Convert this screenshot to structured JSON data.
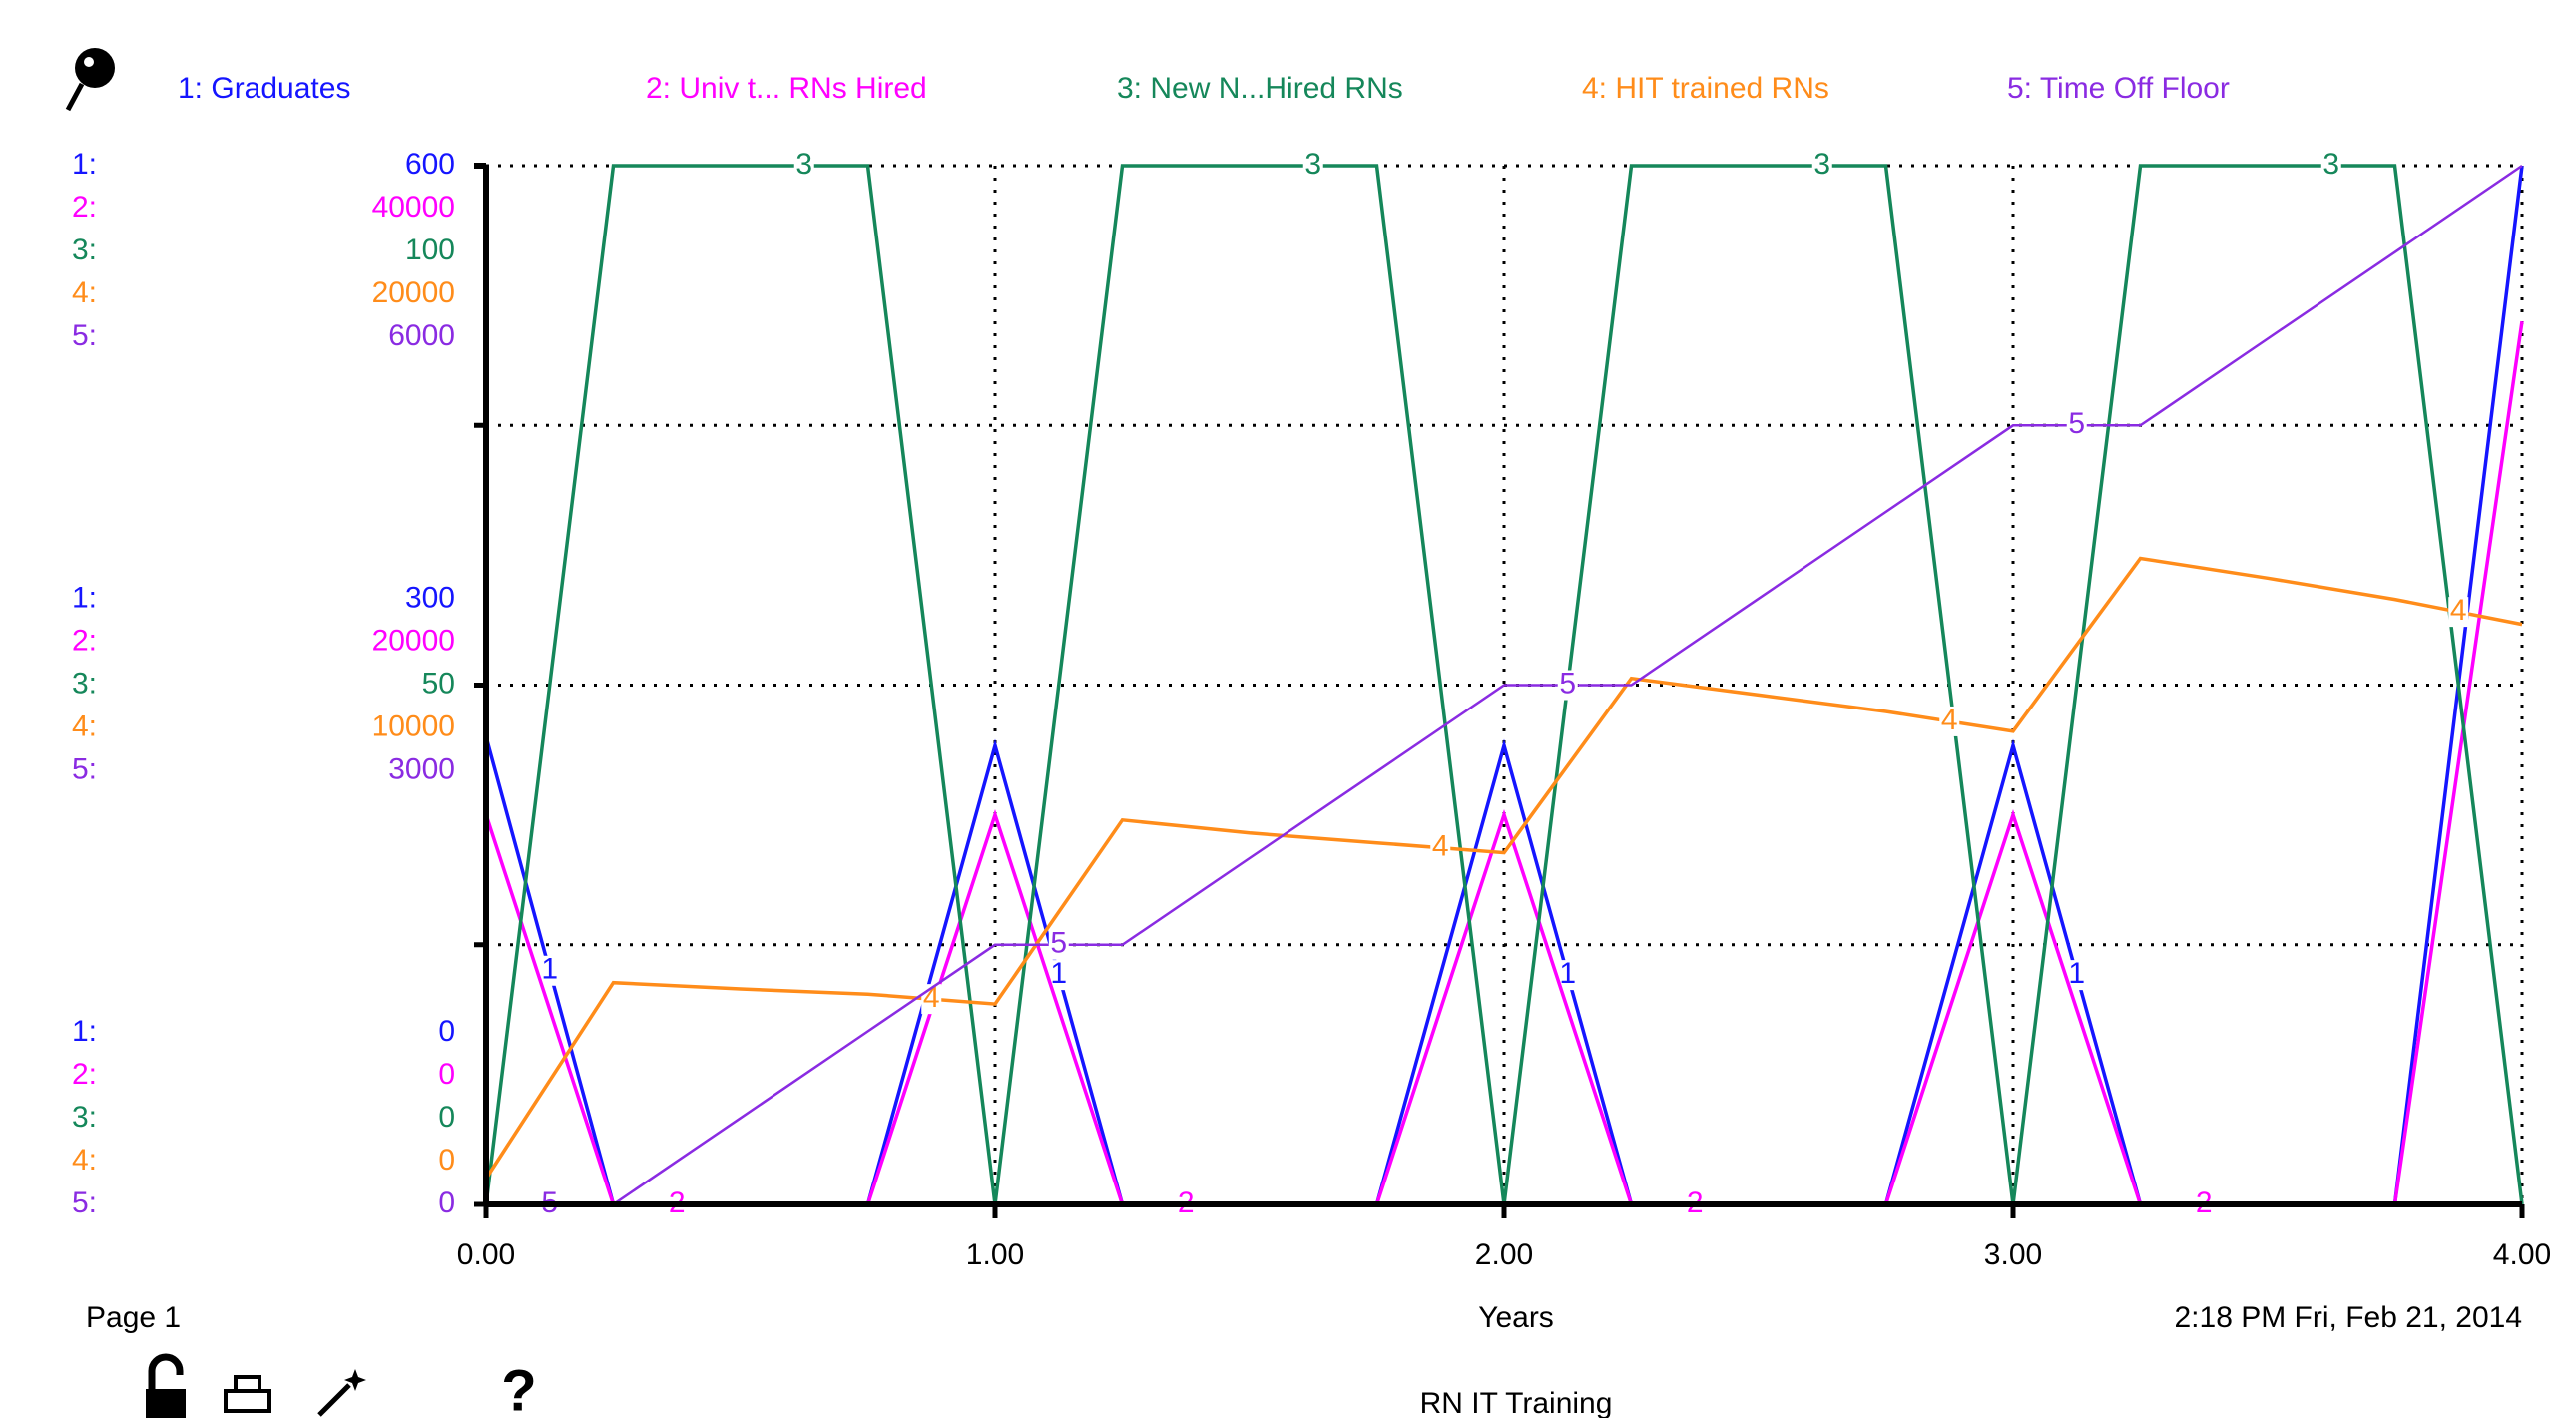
{
  "chart_data": {
    "type": "line",
    "title": "RN IT Training",
    "page_label": "Page 1",
    "timestamp": "2:18 PM   Fri, Feb 21, 2014",
    "help_icon": "?",
    "xlabel": "Years",
    "x": [
      0,
      0.25,
      0.5,
      0.75,
      1,
      1.25,
      1.5,
      1.75,
      2,
      2.25,
      2.5,
      2.75,
      3,
      3.25,
      3.5,
      3.75,
      4
    ],
    "xlim": [
      0,
      4
    ],
    "xticks": [
      {
        "value": 0,
        "label": "0.00"
      },
      {
        "value": 1,
        "label": "1.00"
      },
      {
        "value": 2,
        "label": "2.00"
      },
      {
        "value": 3,
        "label": "3.00"
      },
      {
        "value": 4,
        "label": "4.00"
      }
    ],
    "grid": true,
    "series": [
      {
        "name": "1: Graduates",
        "axis_tag": "1:",
        "marker": "1",
        "color": "#1515ff",
        "values": [
          270,
          0,
          0,
          0,
          265,
          0,
          0,
          0,
          265,
          0,
          0,
          0,
          265,
          0,
          0,
          0,
          600
        ],
        "ylim": [
          0,
          600
        ],
        "yticks": [
          0,
          300,
          600
        ]
      },
      {
        "name": "2: Univ t... RNs Hired",
        "axis_tag": "2:",
        "marker": "2",
        "color": "#ff00ff",
        "values": [
          15000,
          0,
          0,
          0,
          15000,
          0,
          0,
          0,
          15000,
          0,
          0,
          0,
          15000,
          0,
          0,
          0,
          34000
        ],
        "ylim": [
          0,
          40000
        ],
        "yticks": [
          0,
          20000,
          40000
        ]
      },
      {
        "name": "3: New N...Hired RNs",
        "axis_tag": "3:",
        "marker": "3",
        "color": "#15875a",
        "values": [
          0,
          100,
          100,
          100,
          0,
          100,
          100,
          100,
          0,
          100,
          100,
          100,
          0,
          100,
          100,
          100,
          0
        ],
        "ylim": [
          0,
          100
        ],
        "yticks": [
          0,
          50,
          100
        ]
      },
      {
        "name": "4: HIT trained RNs",
        "axis_tag": "4:",
        "marker": "4",
        "color": "#ff8c1a",
        "values": [
          500,
          4270,
          4150,
          4050,
          3860,
          7400,
          7150,
          6960,
          6770,
          10130,
          9810,
          9490,
          9110,
          12440,
          12060,
          11650,
          11170
        ],
        "ylim": [
          0,
          20000
        ],
        "yticks": [
          0,
          10000,
          20000
        ]
      },
      {
        "name": "5: Time Off Floor",
        "axis_tag": "5:",
        "marker": "5",
        "color": "#8a2be2",
        "values": [
          0,
          0,
          500,
          1000,
          1500,
          1500,
          2000,
          2500,
          3000,
          3000,
          3500,
          4000,
          4500,
          4500,
          5000,
          5500,
          6000
        ],
        "ylim": [
          0,
          6000
        ],
        "yticks": [
          0,
          3000,
          6000
        ]
      }
    ]
  }
}
